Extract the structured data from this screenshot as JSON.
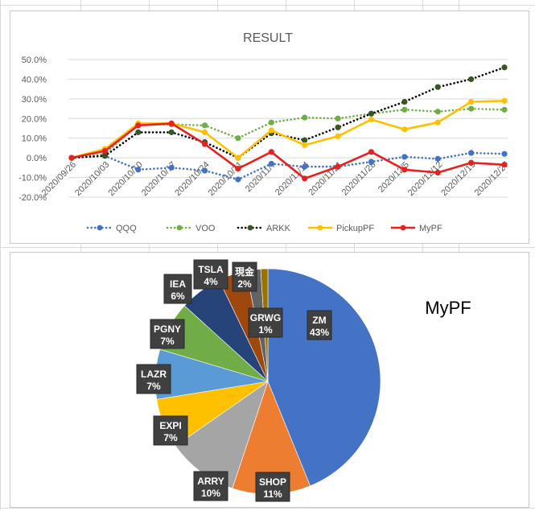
{
  "chart_data": [
    {
      "type": "line",
      "title": "RESULT",
      "x": [
        "2020/09/26",
        "2020/10/03",
        "2020/10/10",
        "2020/10/17",
        "2020/10/24",
        "2020/10/31",
        "2020/11/07",
        "2020/11/14",
        "2020/11/21",
        "2020/11/28",
        "2020/12/05",
        "2020/12/12",
        "2020/12/19",
        "2020/12/27"
      ],
      "x_tick_labels": [
        "2020/09/26",
        "2020/10/03",
        "2020/10/10",
        "2020/10/17",
        "2020/10/24",
        "2020/10/31",
        "2020/11/7",
        "2020/11/14",
        "2020/11/21",
        "2020/11/28",
        "2020/12/5",
        "2020/12/12",
        "2020/12/19",
        "2020/12/27"
      ],
      "ylim": [
        -0.2,
        0.5
      ],
      "y_ticks": [
        -0.2,
        -0.1,
        0.0,
        0.1,
        0.2,
        0.3,
        0.4,
        0.5
      ],
      "y_tick_labels": [
        "-20.0%",
        "-10.0%",
        "0.0%",
        "10.0%",
        "20.0%",
        "30.0%",
        "40.0%",
        "50.0%"
      ],
      "grid": true,
      "legend": "bottom",
      "series": [
        {
          "name": "QQQ",
          "color": "#4472C4",
          "style": "dotted",
          "values": [
            0.0,
            0.01,
            -0.06,
            -0.05,
            -0.065,
            -0.11,
            -0.03,
            -0.045,
            -0.045,
            -0.02,
            0.005,
            -0.005,
            0.025,
            0.02
          ]
        },
        {
          "name": "VOO",
          "color": "#70AD47",
          "style": "dotted",
          "values": [
            0.0,
            0.02,
            0.17,
            0.17,
            0.165,
            0.1,
            0.18,
            0.205,
            0.2,
            0.225,
            0.245,
            0.235,
            0.25,
            0.245
          ]
        },
        {
          "name": "ARKK",
          "color": "#000000",
          "marker_color": "#375623",
          "style": "dotted",
          "values": [
            0.0,
            0.01,
            0.13,
            0.13,
            0.08,
            0.0,
            0.125,
            0.09,
            0.155,
            0.225,
            0.285,
            0.36,
            0.4,
            0.46
          ]
        },
        {
          "name": "PickupPF",
          "color": "#FFC000",
          "style": "solid",
          "values": [
            0.0,
            0.045,
            0.175,
            0.175,
            0.13,
            0.0,
            0.14,
            0.065,
            0.11,
            0.195,
            0.145,
            0.18,
            0.285,
            0.29
          ]
        },
        {
          "name": "MyPF",
          "color": "#E8211F",
          "style": "solid",
          "values": [
            0.0,
            0.035,
            0.165,
            0.175,
            0.07,
            -0.055,
            0.03,
            -0.105,
            -0.045,
            0.03,
            -0.06,
            -0.075,
            -0.025,
            -0.035
          ]
        }
      ]
    },
    {
      "type": "pie",
      "title": "MyPF",
      "start_angle_deg": 0,
      "direction": "clockwise",
      "slices": [
        {
          "name": "ZM",
          "label": "43%",
          "value": 43,
          "color": "#4472C4"
        },
        {
          "name": "SHOP",
          "label": "11%",
          "value": 11,
          "color": "#ED7D31"
        },
        {
          "name": "ARRY",
          "label": "10%",
          "value": 10,
          "color": "#A5A5A5"
        },
        {
          "name": "EXPI",
          "label": "7%",
          "value": 7,
          "color": "#FFC000"
        },
        {
          "name": "LAZR",
          "label": "7%",
          "value": 7,
          "color": "#5B9BD5"
        },
        {
          "name": "PGNY",
          "label": "7%",
          "value": 7,
          "color": "#70AD47"
        },
        {
          "name": "IEA",
          "label": "6%",
          "value": 6,
          "color": "#264478"
        },
        {
          "name": "TSLA",
          "label": "4%",
          "value": 4,
          "color": "#9E480E"
        },
        {
          "name": "現金",
          "label": "2%",
          "value": 2,
          "color": "#636363"
        },
        {
          "name": "GRWG",
          "label": "1%",
          "value": 1,
          "color": "#997300"
        }
      ]
    }
  ]
}
